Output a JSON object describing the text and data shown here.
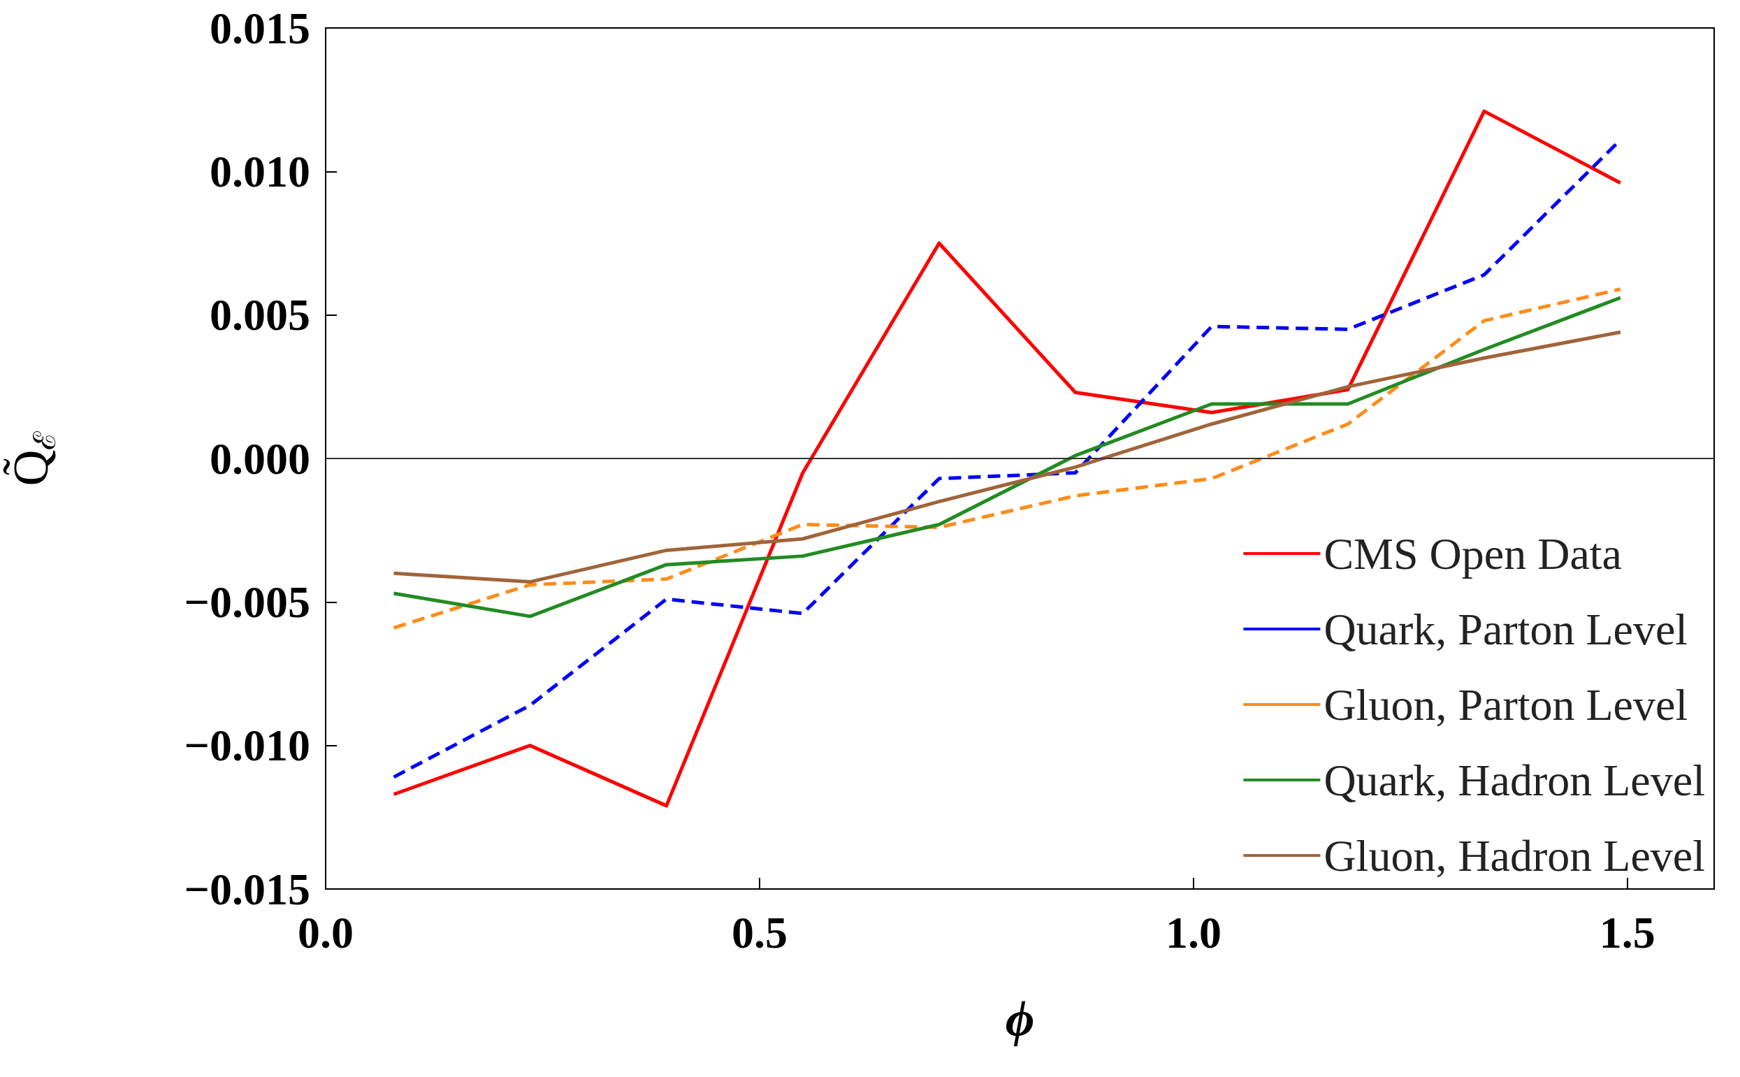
{
  "chart_data": {
    "type": "line",
    "xlabel": "ϕ",
    "ylabel": "Q̃$_{ℰ}$",
    "x": [
      0.0785,
      0.2356,
      0.3927,
      0.5498,
      0.7069,
      0.8639,
      1.021,
      1.178,
      1.335,
      1.492
    ],
    "series": [
      {
        "name": "CMS Open Data",
        "color": "#ff0000",
        "line_style": "solid",
        "values": [
          -0.0117,
          -0.01,
          -0.0121,
          -0.0005,
          0.0075,
          0.0023,
          0.0016,
          0.0024,
          0.0121,
          0.0096
        ]
      },
      {
        "name": "Quark, Parton Level",
        "color": "#0000ff",
        "line_style": "dashed",
        "values": [
          -0.0111,
          -0.0086,
          -0.0049,
          -0.0054,
          -0.0007,
          -0.0005,
          0.0046,
          0.0045,
          0.0064,
          0.0111
        ]
      },
      {
        "name": "Gluon, Parton Level",
        "color": "#ff8c1a",
        "line_style": "dashed",
        "values": [
          -0.0059,
          -0.0044,
          -0.0042,
          -0.0023,
          -0.0024,
          -0.0013,
          -0.0007,
          0.0012,
          0.0048,
          0.0059
        ]
      },
      {
        "name": "Quark, Hadron Level",
        "color": "#228b22",
        "line_style": "solid",
        "values": [
          -0.0047,
          -0.0055,
          -0.0037,
          -0.0034,
          -0.0023,
          0.0001,
          0.0019,
          0.0019,
          0.0038,
          0.0056
        ]
      },
      {
        "name": "Gluon, Hadron Level",
        "color": "#a0643a",
        "line_style": "solid",
        "values": [
          -0.004,
          -0.0043,
          -0.0032,
          -0.0028,
          -0.0015,
          -0.0003,
          0.0012,
          0.0025,
          0.0035,
          0.0044
        ]
      }
    ],
    "xlim": [
      0,
      1.6
    ],
    "xticks": [
      {
        "value": 0,
        "label": "0.0"
      },
      {
        "value": 0.5,
        "label": "0.5"
      },
      {
        "value": 1.0,
        "label": "1.0"
      },
      {
        "value": 1.5,
        "label": "1.5"
      }
    ],
    "ylim": [
      -0.015,
      0.015
    ],
    "yticks": [
      {
        "value": -0.015,
        "label": "−0.015"
      },
      {
        "value": -0.01,
        "label": "−0.010"
      },
      {
        "value": -0.005,
        "label": "−0.005"
      },
      {
        "value": 0,
        "label": "0.000"
      },
      {
        "value": 0.005,
        "label": "0.005"
      },
      {
        "value": 0.01,
        "label": "0.010"
      },
      {
        "value": 0.015,
        "label": "0.015"
      }
    ],
    "ref_lines": [
      {
        "axis": "y",
        "value": 0,
        "color": "#333333"
      }
    ],
    "grid": false,
    "legend": "bottom right",
    "marker": "none"
  }
}
